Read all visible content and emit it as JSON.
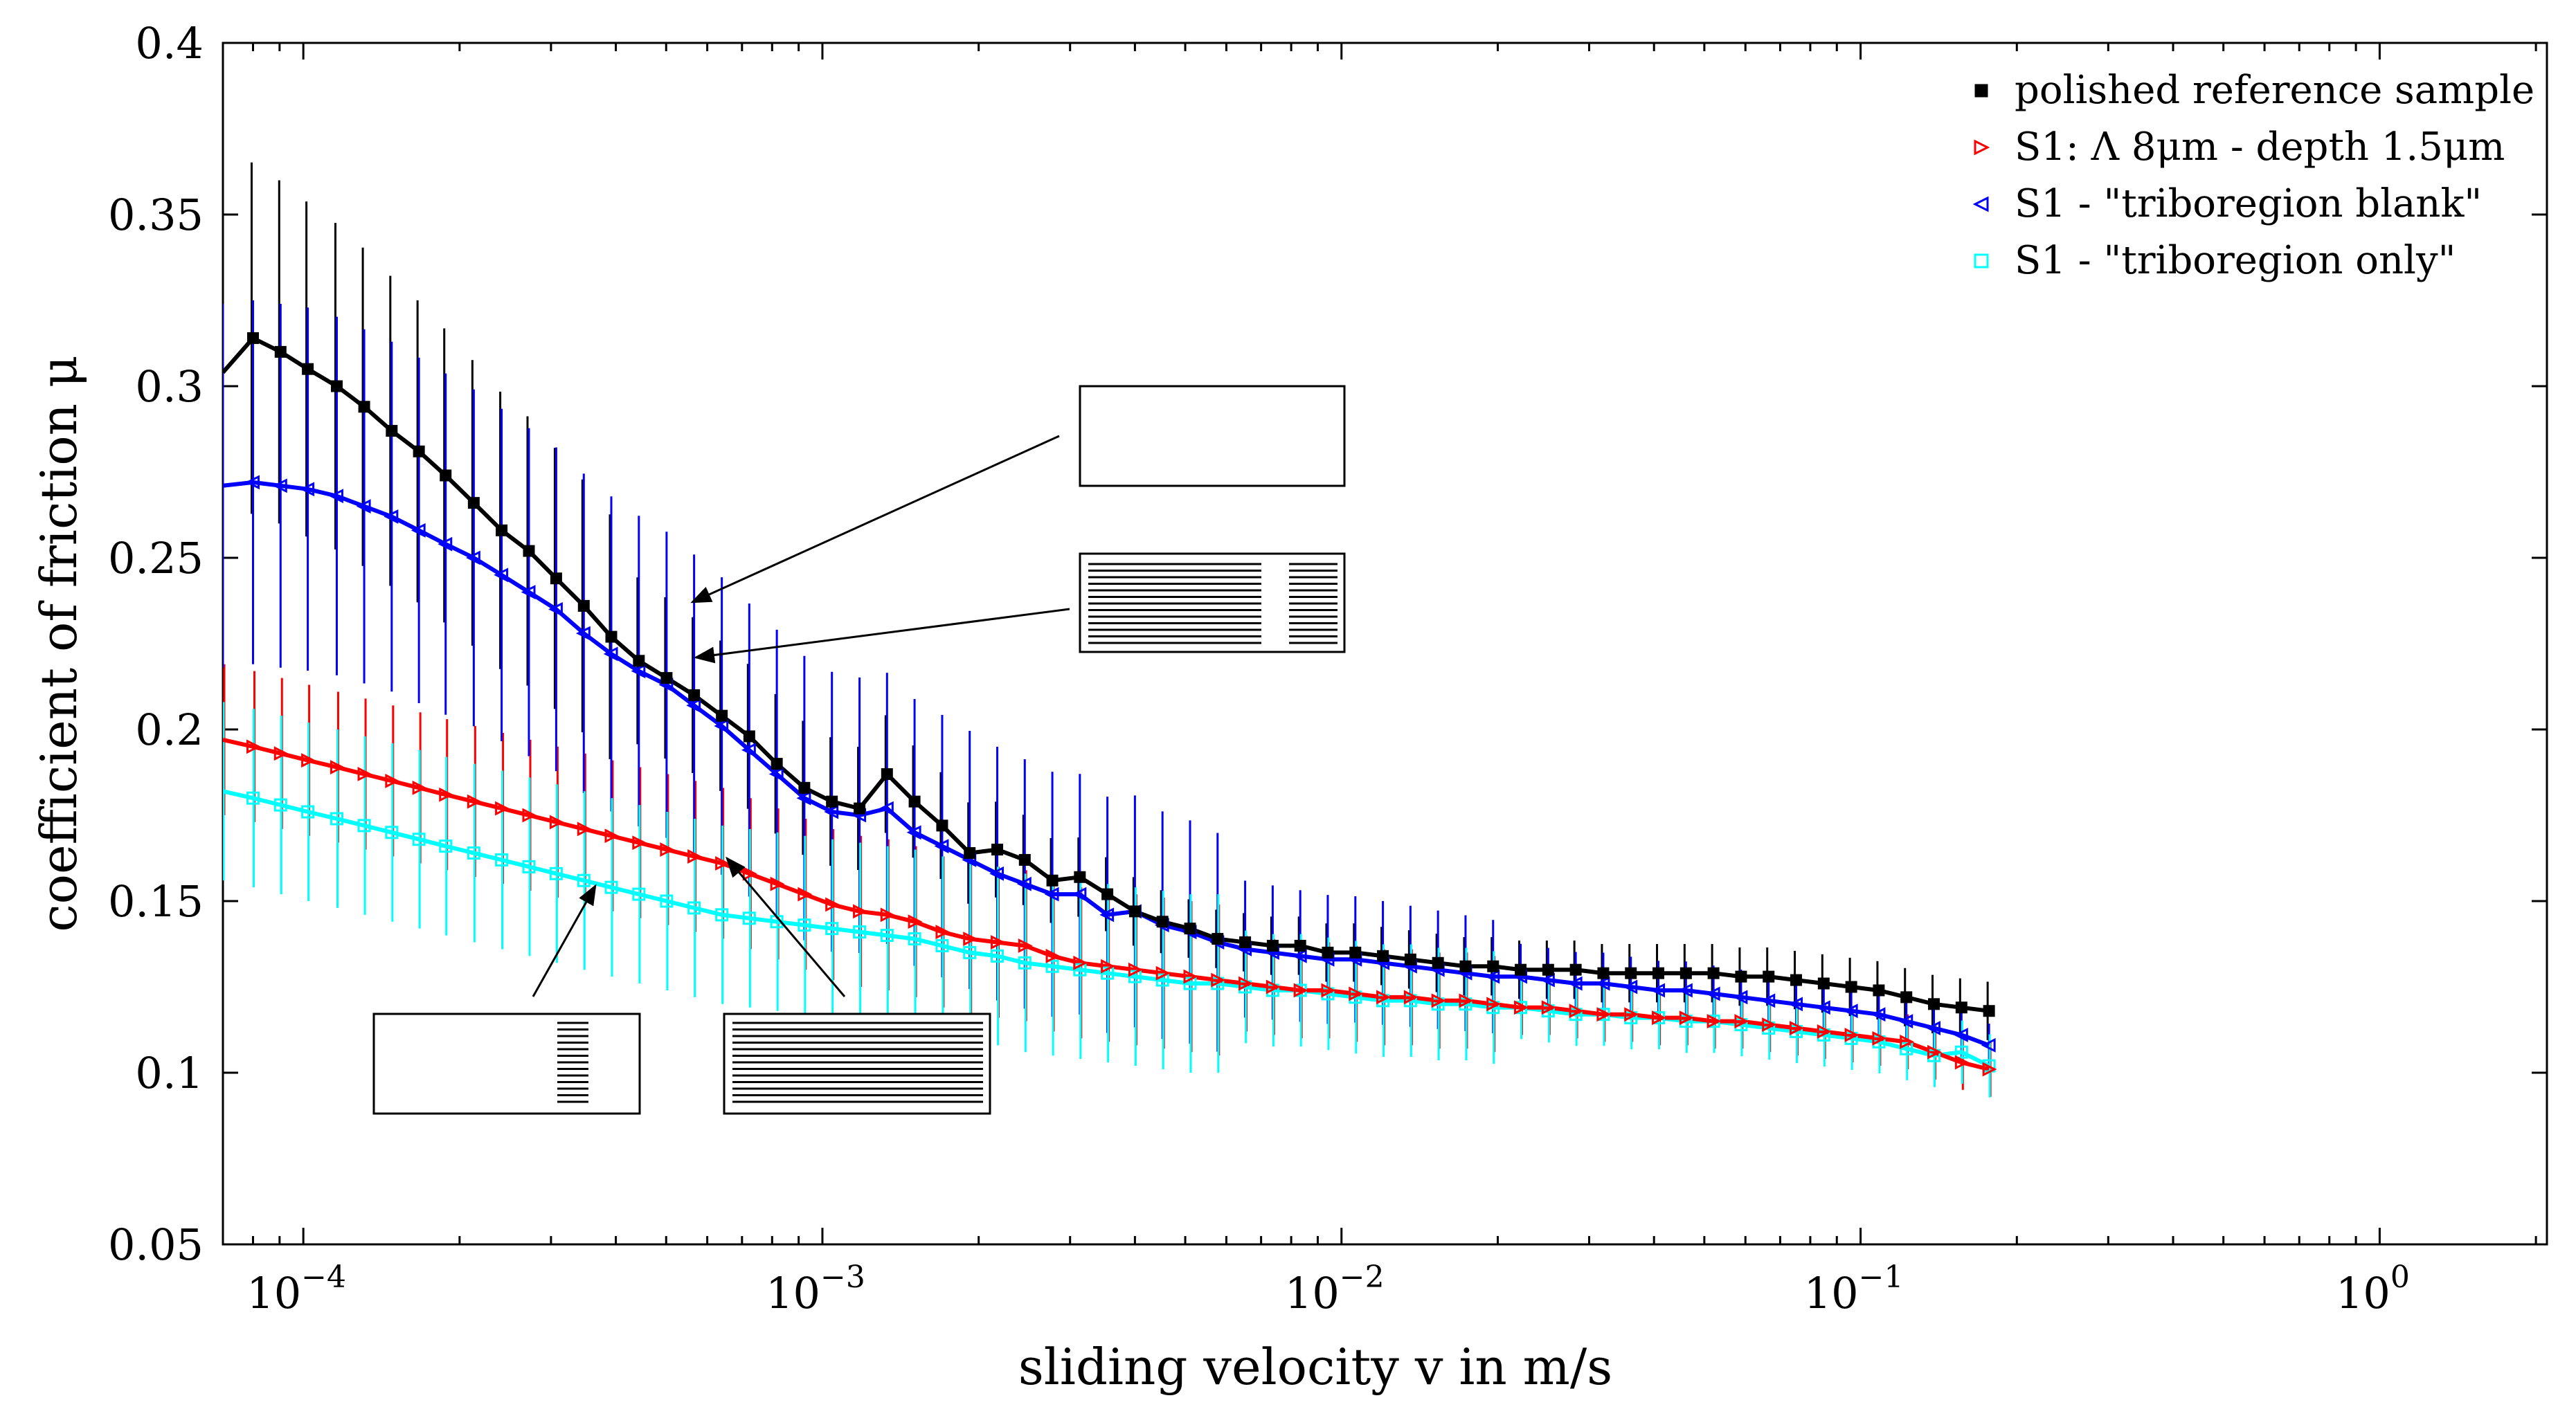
{
  "chart_data": {
    "type": "line",
    "xscale": "log",
    "xlabel": "sliding velocity v in m/s",
    "ylabel": "coefficient of friction μ",
    "xlim": [
      7e-05,
      2.1
    ],
    "ylim": [
      0.05,
      0.4
    ],
    "yticks": [
      "0.05",
      "0.1",
      "0.15",
      "0.2",
      "0.25",
      "0.3",
      "0.35",
      "0.4"
    ],
    "xticks": [
      {
        "value": 0.0001,
        "base": "10",
        "exp": "−4"
      },
      {
        "value": 0.001,
        "base": "10",
        "exp": "−3"
      },
      {
        "value": 0.01,
        "base": "10",
        "exp": "−2"
      },
      {
        "value": 0.1,
        "base": "10",
        "exp": "−1"
      },
      {
        "value": 1,
        "base": "10",
        "exp": "0"
      }
    ],
    "legend_position": "top-right",
    "series": [
      {
        "name": "polished reference sample",
        "color": "#000000",
        "marker": "square",
        "points": [
          [
            7e-05,
            0.304
          ],
          [
            8e-05,
            0.314
          ],
          [
            9.04e-05,
            0.31
          ],
          [
            0.000102,
            0.305
          ],
          [
            0.000116,
            0.3
          ],
          [
            0.000131,
            0.294
          ],
          [
            0.000148,
            0.287
          ],
          [
            0.000167,
            0.281
          ],
          [
            0.000188,
            0.274
          ],
          [
            0.000213,
            0.266
          ],
          [
            0.000241,
            0.258
          ],
          [
            0.000272,
            0.252
          ],
          [
            0.000307,
            0.244
          ],
          [
            0.000347,
            0.236
          ],
          [
            0.000392,
            0.227
          ],
          [
            0.000443,
            0.22
          ],
          [
            0.000501,
            0.215
          ],
          [
            0.000566,
            0.21
          ],
          [
            0.00064,
            0.204
          ],
          [
            0.000723,
            0.198
          ],
          [
            0.000817,
            0.19
          ],
          [
            0.000923,
            0.183
          ],
          [
            0.001043,
            0.179
          ],
          [
            0.001179,
            0.177
          ],
          [
            0.001332,
            0.187
          ],
          [
            0.001505,
            0.179
          ],
          [
            0.001701,
            0.172
          ],
          [
            0.001922,
            0.164
          ],
          [
            0.002172,
            0.165
          ],
          [
            0.002454,
            0.162
          ],
          [
            0.002773,
            0.156
          ],
          [
            0.003133,
            0.157
          ],
          [
            0.00354,
            0.152
          ],
          [
            0.004,
            0.147
          ],
          [
            0.00452,
            0.144
          ],
          [
            0.005108,
            0.142
          ],
          [
            0.005772,
            0.139
          ],
          [
            0.006522,
            0.138
          ],
          [
            0.00737,
            0.137
          ],
          [
            0.008328,
            0.137
          ],
          [
            0.00941,
            0.135
          ],
          [
            0.010634,
            0.135
          ],
          [
            0.012016,
            0.134
          ],
          [
            0.013578,
            0.133
          ],
          [
            0.015343,
            0.132
          ],
          [
            0.017337,
            0.131
          ],
          [
            0.019591,
            0.131
          ],
          [
            0.022137,
            0.13
          ],
          [
            0.025015,
            0.13
          ],
          [
            0.028267,
            0.13
          ],
          [
            0.031942,
            0.129
          ],
          [
            0.036094,
            0.129
          ],
          [
            0.040786,
            0.129
          ],
          [
            0.046088,
            0.129
          ],
          [
            0.052079,
            0.129
          ],
          [
            0.058849,
            0.128
          ],
          [
            0.0665,
            0.128
          ],
          [
            0.075144,
            0.127
          ],
          [
            0.084913,
            0.126
          ],
          [
            0.095952,
            0.125
          ],
          [
            0.108425,
            0.124
          ],
          [
            0.122521,
            0.122
          ],
          [
            0.138448,
            0.12
          ],
          [
            0.15645,
            0.119
          ],
          [
            0.176788,
            0.118
          ]
        ]
      },
      {
        "name": "S1: Λ 8μm - depth 1.5μm",
        "color": "#ff0000",
        "marker": "triangle-right",
        "points": [
          [
            7e-05,
            0.197
          ],
          [
            8e-05,
            0.195
          ],
          [
            9.04e-05,
            0.193
          ],
          [
            0.000102,
            0.191
          ],
          [
            0.000116,
            0.189
          ],
          [
            0.000131,
            0.187
          ],
          [
            0.000148,
            0.185
          ],
          [
            0.000167,
            0.183
          ],
          [
            0.000188,
            0.181
          ],
          [
            0.000213,
            0.179
          ],
          [
            0.000241,
            0.177
          ],
          [
            0.000272,
            0.175
          ],
          [
            0.000307,
            0.173
          ],
          [
            0.000347,
            0.171
          ],
          [
            0.000392,
            0.169
          ],
          [
            0.000443,
            0.167
          ],
          [
            0.000501,
            0.165
          ],
          [
            0.000566,
            0.163
          ],
          [
            0.00064,
            0.161
          ],
          [
            0.000723,
            0.158
          ],
          [
            0.000817,
            0.155
          ],
          [
            0.000923,
            0.152
          ],
          [
            0.001043,
            0.149
          ],
          [
            0.001179,
            0.147
          ],
          [
            0.001332,
            0.146
          ],
          [
            0.001505,
            0.144
          ],
          [
            0.001701,
            0.141
          ],
          [
            0.001922,
            0.139
          ],
          [
            0.002172,
            0.138
          ],
          [
            0.002454,
            0.137
          ],
          [
            0.002773,
            0.134
          ],
          [
            0.003133,
            0.132
          ],
          [
            0.00354,
            0.131
          ],
          [
            0.004,
            0.13
          ],
          [
            0.00452,
            0.129
          ],
          [
            0.005108,
            0.128
          ],
          [
            0.005772,
            0.127
          ],
          [
            0.006522,
            0.126
          ],
          [
            0.00737,
            0.125
          ],
          [
            0.008328,
            0.124
          ],
          [
            0.00941,
            0.124
          ],
          [
            0.010634,
            0.123
          ],
          [
            0.012016,
            0.122
          ],
          [
            0.013578,
            0.122
          ],
          [
            0.015343,
            0.121
          ],
          [
            0.017337,
            0.121
          ],
          [
            0.019591,
            0.12
          ],
          [
            0.022137,
            0.119
          ],
          [
            0.025015,
            0.119
          ],
          [
            0.028267,
            0.118
          ],
          [
            0.031942,
            0.117
          ],
          [
            0.036094,
            0.117
          ],
          [
            0.040786,
            0.116
          ],
          [
            0.046088,
            0.116
          ],
          [
            0.052079,
            0.115
          ],
          [
            0.058849,
            0.115
          ],
          [
            0.0665,
            0.114
          ],
          [
            0.075144,
            0.113
          ],
          [
            0.084913,
            0.112
          ],
          [
            0.095952,
            0.111
          ],
          [
            0.108425,
            0.11
          ],
          [
            0.122521,
            0.109
          ],
          [
            0.138448,
            0.106
          ],
          [
            0.15645,
            0.103
          ],
          [
            0.176788,
            0.101
          ]
        ]
      },
      {
        "name": "S1 - \"triboregion blank\"",
        "color": "#0000ff",
        "marker": "triangle-left",
        "points": [
          [
            7e-05,
            0.271
          ],
          [
            8e-05,
            0.272
          ],
          [
            9.04e-05,
            0.271
          ],
          [
            0.000102,
            0.27
          ],
          [
            0.000116,
            0.268
          ],
          [
            0.000131,
            0.265
          ],
          [
            0.000148,
            0.262
          ],
          [
            0.000167,
            0.258
          ],
          [
            0.000188,
            0.254
          ],
          [
            0.000213,
            0.25
          ],
          [
            0.000241,
            0.245
          ],
          [
            0.000272,
            0.24
          ],
          [
            0.000307,
            0.235
          ],
          [
            0.000347,
            0.228
          ],
          [
            0.000392,
            0.222
          ],
          [
            0.000443,
            0.217
          ],
          [
            0.000501,
            0.213
          ],
          [
            0.000566,
            0.207
          ],
          [
            0.00064,
            0.201
          ],
          [
            0.000723,
            0.194
          ],
          [
            0.000817,
            0.187
          ],
          [
            0.000923,
            0.18
          ],
          [
            0.001043,
            0.176
          ],
          [
            0.001179,
            0.175
          ],
          [
            0.001332,
            0.177
          ],
          [
            0.001505,
            0.17
          ],
          [
            0.001701,
            0.166
          ],
          [
            0.001922,
            0.162
          ],
          [
            0.002172,
            0.158
          ],
          [
            0.002454,
            0.155
          ],
          [
            0.002773,
            0.152
          ],
          [
            0.003133,
            0.152
          ],
          [
            0.00354,
            0.146
          ],
          [
            0.004,
            0.147
          ],
          [
            0.00452,
            0.143
          ],
          [
            0.005108,
            0.141
          ],
          [
            0.005772,
            0.138
          ],
          [
            0.006522,
            0.136
          ],
          [
            0.00737,
            0.135
          ],
          [
            0.008328,
            0.134
          ],
          [
            0.00941,
            0.133
          ],
          [
            0.010634,
            0.133
          ],
          [
            0.012016,
            0.132
          ],
          [
            0.013578,
            0.131
          ],
          [
            0.015343,
            0.13
          ],
          [
            0.017337,
            0.129
          ],
          [
            0.019591,
            0.128
          ],
          [
            0.022137,
            0.128
          ],
          [
            0.025015,
            0.127
          ],
          [
            0.028267,
            0.126
          ],
          [
            0.031942,
            0.126
          ],
          [
            0.036094,
            0.125
          ],
          [
            0.040786,
            0.124
          ],
          [
            0.046088,
            0.124
          ],
          [
            0.052079,
            0.123
          ],
          [
            0.058849,
            0.122
          ],
          [
            0.0665,
            0.121
          ],
          [
            0.075144,
            0.12
          ],
          [
            0.084913,
            0.119
          ],
          [
            0.095952,
            0.118
          ],
          [
            0.108425,
            0.117
          ],
          [
            0.122521,
            0.115
          ],
          [
            0.138448,
            0.113
          ],
          [
            0.15645,
            0.111
          ],
          [
            0.176788,
            0.108
          ]
        ]
      },
      {
        "name": "S1 - \"triboregion only\"",
        "color": "#00ffff",
        "marker": "square-open",
        "points": [
          [
            7e-05,
            0.182
          ],
          [
            8e-05,
            0.18
          ],
          [
            9.04e-05,
            0.178
          ],
          [
            0.000102,
            0.176
          ],
          [
            0.000116,
            0.174
          ],
          [
            0.000131,
            0.172
          ],
          [
            0.000148,
            0.17
          ],
          [
            0.000167,
            0.168
          ],
          [
            0.000188,
            0.166
          ],
          [
            0.000213,
            0.164
          ],
          [
            0.000241,
            0.162
          ],
          [
            0.000272,
            0.16
          ],
          [
            0.000307,
            0.158
          ],
          [
            0.000347,
            0.156
          ],
          [
            0.000392,
            0.154
          ],
          [
            0.000443,
            0.152
          ],
          [
            0.000501,
            0.15
          ],
          [
            0.000566,
            0.148
          ],
          [
            0.00064,
            0.146
          ],
          [
            0.000723,
            0.145
          ],
          [
            0.000817,
            0.144
          ],
          [
            0.000923,
            0.143
          ],
          [
            0.001043,
            0.142
          ],
          [
            0.001179,
            0.141
          ],
          [
            0.001332,
            0.14
          ],
          [
            0.001505,
            0.139
          ],
          [
            0.001701,
            0.137
          ],
          [
            0.001922,
            0.135
          ],
          [
            0.002172,
            0.134
          ],
          [
            0.002454,
            0.132
          ],
          [
            0.002773,
            0.131
          ],
          [
            0.003133,
            0.13
          ],
          [
            0.00354,
            0.129
          ],
          [
            0.004,
            0.128
          ],
          [
            0.00452,
            0.127
          ],
          [
            0.005108,
            0.126
          ],
          [
            0.005772,
            0.126
          ],
          [
            0.006522,
            0.125
          ],
          [
            0.00737,
            0.124
          ],
          [
            0.008328,
            0.124
          ],
          [
            0.00941,
            0.123
          ],
          [
            0.010634,
            0.122
          ],
          [
            0.012016,
            0.121
          ],
          [
            0.013578,
            0.121
          ],
          [
            0.015343,
            0.12
          ],
          [
            0.017337,
            0.12
          ],
          [
            0.019591,
            0.119
          ],
          [
            0.022137,
            0.119
          ],
          [
            0.025015,
            0.118
          ],
          [
            0.028267,
            0.117
          ],
          [
            0.031942,
            0.117
          ],
          [
            0.036094,
            0.116
          ],
          [
            0.040786,
            0.116
          ],
          [
            0.046088,
            0.115
          ],
          [
            0.052079,
            0.115
          ],
          [
            0.058849,
            0.114
          ],
          [
            0.0665,
            0.113
          ],
          [
            0.075144,
            0.112
          ],
          [
            0.084913,
            0.111
          ],
          [
            0.095952,
            0.11
          ],
          [
            0.108425,
            0.109
          ],
          [
            0.122521,
            0.107
          ],
          [
            0.138448,
            0.105
          ],
          [
            0.15645,
            0.106
          ],
          [
            0.176788,
            0.102
          ]
        ]
      }
    ]
  }
}
